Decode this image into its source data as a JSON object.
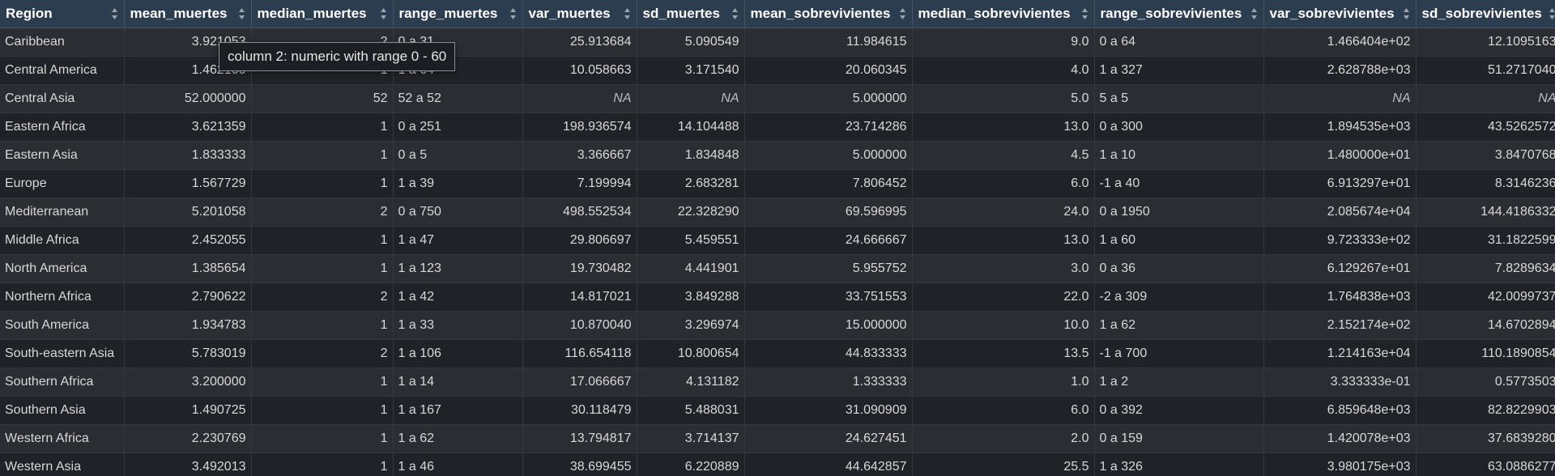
{
  "tooltip": "column 2: numeric with range 0 - 60",
  "colors": {
    "header_bg": "#2b3d4f",
    "row_odd": "#2a2d31",
    "row_even": "#1f2226",
    "text": "#d8d8d8"
  },
  "columns": [
    {
      "label": "Region",
      "align": "left",
      "width": 153
    },
    {
      "label": "mean_muertes",
      "align": "right",
      "width": 157
    },
    {
      "label": "median_muertes",
      "align": "right",
      "width": 175
    },
    {
      "label": "range_muertes",
      "align": "left",
      "width": 160
    },
    {
      "label": "var_muertes",
      "align": "right",
      "width": 141
    },
    {
      "label": "sd_muertes",
      "align": "right",
      "width": 133
    },
    {
      "label": "mean_sobrevivientes",
      "align": "right",
      "width": 207
    },
    {
      "label": "median_sobrevivientes",
      "align": "right",
      "width": 225
    },
    {
      "label": "range_sobrevivientes",
      "align": "left",
      "width": 209
    },
    {
      "label": "var_sobrevivientes",
      "align": "right",
      "width": 188
    },
    {
      "label": "sd_sobrevivientes",
      "align": "right",
      "width": 180
    }
  ],
  "rows": [
    [
      "Caribbean",
      "3.921053",
      "2",
      "0 a 31",
      "25.913684",
      "5.090549",
      "11.984615",
      "9.0",
      "0 a 64",
      "1.466404e+02",
      "12.1095163"
    ],
    [
      "Central America",
      "1.462100",
      "1",
      "1 a 64",
      "10.058663",
      "3.171540",
      "20.060345",
      "4.0",
      "1 a 327",
      "2.628788e+03",
      "51.2717040"
    ],
    [
      "Central Asia",
      "52.000000",
      "52",
      "52 a 52",
      "NA",
      "NA",
      "5.000000",
      "5.0",
      "5 a 5",
      "NA",
      "NA"
    ],
    [
      "Eastern Africa",
      "3.621359",
      "1",
      "0 a 251",
      "198.936574",
      "14.104488",
      "23.714286",
      "13.0",
      "0 a 300",
      "1.894535e+03",
      "43.5262572"
    ],
    [
      "Eastern Asia",
      "1.833333",
      "1",
      "0 a 5",
      "3.366667",
      "1.834848",
      "5.000000",
      "4.5",
      "1 a 10",
      "1.480000e+01",
      "3.8470768"
    ],
    [
      "Europe",
      "1.567729",
      "1",
      "1 a 39",
      "7.199994",
      "2.683281",
      "7.806452",
      "6.0",
      "-1 a 40",
      "6.913297e+01",
      "8.3146236"
    ],
    [
      "Mediterranean",
      "5.201058",
      "2",
      "0 a 750",
      "498.552534",
      "22.328290",
      "69.596995",
      "24.0",
      "0 a 1950",
      "2.085674e+04",
      "144.4186332"
    ],
    [
      "Middle Africa",
      "2.452055",
      "1",
      "1 a 47",
      "29.806697",
      "5.459551",
      "24.666667",
      "13.0",
      "1 a 60",
      "9.723333e+02",
      "31.1822599"
    ],
    [
      "North America",
      "1.385654",
      "1",
      "1 a 123",
      "19.730482",
      "4.441901",
      "5.955752",
      "3.0",
      "0 a 36",
      "6.129267e+01",
      "7.8289634"
    ],
    [
      "Northern Africa",
      "2.790622",
      "2",
      "1 a 42",
      "14.817021",
      "3.849288",
      "33.751553",
      "22.0",
      "-2 a 309",
      "1.764838e+03",
      "42.0099737"
    ],
    [
      "South America",
      "1.934783",
      "1",
      "1 a 33",
      "10.870040",
      "3.296974",
      "15.000000",
      "10.0",
      "1 a 62",
      "2.152174e+02",
      "14.6702894"
    ],
    [
      "South-eastern Asia",
      "5.783019",
      "2",
      "1 a 106",
      "116.654118",
      "10.800654",
      "44.833333",
      "13.5",
      "-1 a 700",
      "1.214163e+04",
      "110.1890854"
    ],
    [
      "Southern Africa",
      "3.200000",
      "1",
      "1 a 14",
      "17.066667",
      "4.131182",
      "1.333333",
      "1.0",
      "1 a 2",
      "3.333333e-01",
      "0.5773503"
    ],
    [
      "Southern Asia",
      "1.490725",
      "1",
      "1 a 167",
      "30.118479",
      "5.488031",
      "31.090909",
      "6.0",
      "0 a 392",
      "6.859648e+03",
      "82.8229903"
    ],
    [
      "Western Africa",
      "2.230769",
      "1",
      "1 a 62",
      "13.794817",
      "3.714137",
      "24.627451",
      "2.0",
      "0 a 159",
      "1.420078e+03",
      "37.6839280"
    ],
    [
      "Western Asia",
      "3.492013",
      "1",
      "1 a 46",
      "38.699455",
      "6.220889",
      "44.642857",
      "25.5",
      "1 a 326",
      "3.980175e+03",
      "63.0886277"
    ]
  ]
}
